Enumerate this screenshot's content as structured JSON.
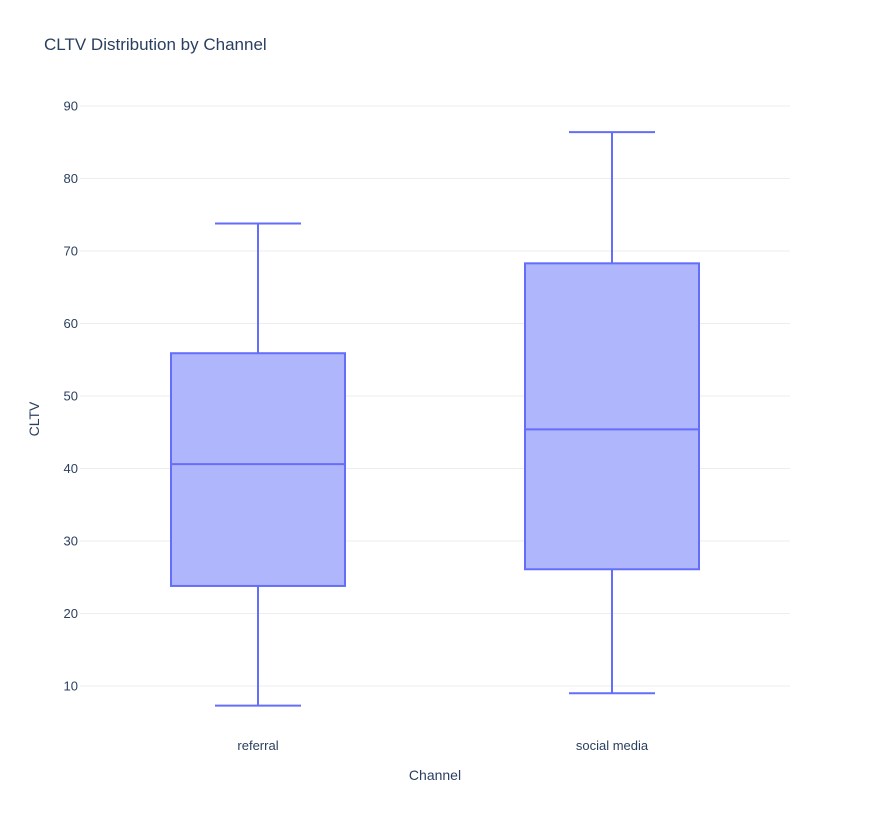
{
  "chart_data": {
    "type": "box",
    "title": "CLTV Distribution by Channel",
    "xlabel": "Channel",
    "ylabel": "CLTV",
    "ylim": [
      3,
      94
    ],
    "yticks": [
      10,
      20,
      30,
      40,
      50,
      60,
      70,
      80,
      90
    ],
    "grid": true,
    "color": "#636efa",
    "fill_color": "#b0b6fb",
    "categories": [
      "referral",
      "social media"
    ],
    "boxes": [
      {
        "category": "referral",
        "min": 7.3,
        "q1": 23.8,
        "median": 40.6,
        "q3": 55.9,
        "max": 73.8
      },
      {
        "category": "social media",
        "min": 9.0,
        "q1": 26.1,
        "median": 45.4,
        "q3": 68.3,
        "max": 86.4
      }
    ]
  }
}
